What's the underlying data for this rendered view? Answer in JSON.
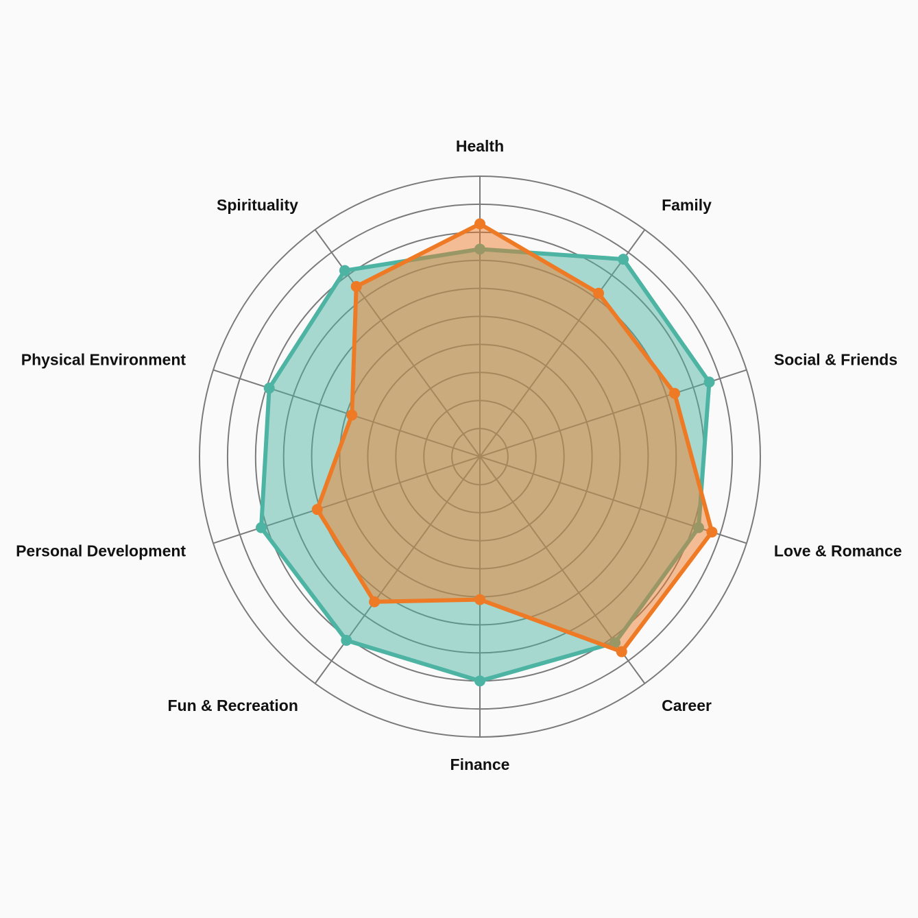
{
  "chart_data": {
    "type": "radar",
    "categories": [
      "Health",
      "Family",
      "Social & Friends",
      "Love & Romance",
      "Career",
      "Finance",
      "Fun & Recreation",
      "Personal Development",
      "Physical Environment",
      "Spirituality"
    ],
    "series": [
      {
        "color": "#4db3a3",
        "fill": "rgba(77,179,163,0.48)",
        "values": [
          7.4,
          8.7,
          8.6,
          8.2,
          8.2,
          8.0,
          8.1,
          8.2,
          7.9,
          8.2
        ]
      },
      {
        "color": "#ee7a25",
        "fill": "rgba(238,122,37,0.48)",
        "values": [
          8.3,
          7.2,
          7.3,
          8.7,
          8.6,
          5.1,
          6.4,
          6.1,
          4.8,
          7.5
        ]
      }
    ],
    "r_range": [
      0,
      10
    ],
    "grid_rings": 10,
    "grid": true,
    "legend": "none"
  }
}
